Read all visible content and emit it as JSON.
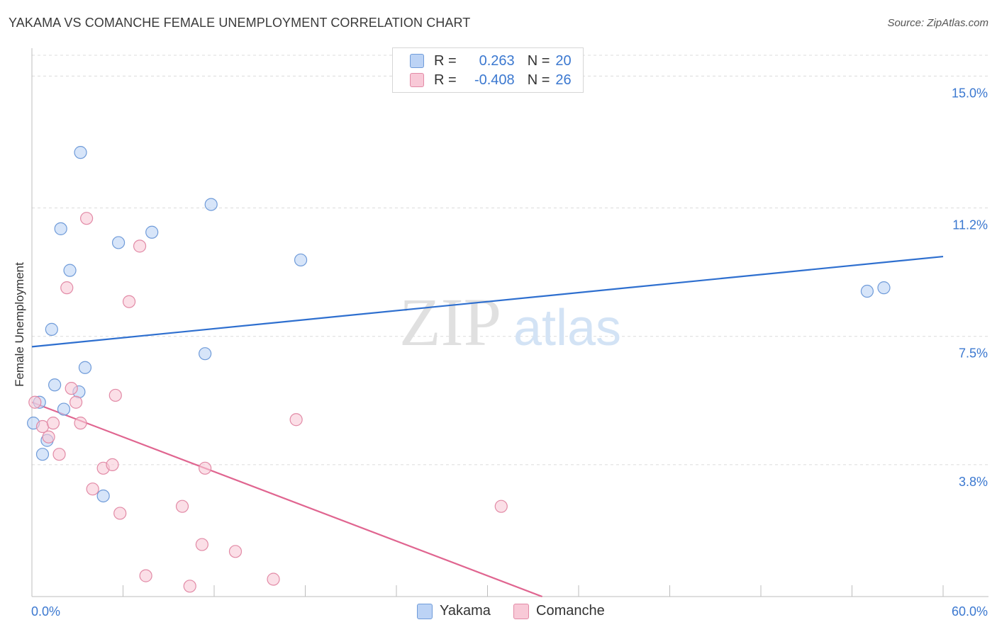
{
  "title": "YAKAMA VS COMANCHE FEMALE UNEMPLOYMENT CORRELATION CHART",
  "source": "Source: ZipAtlas.com",
  "watermark": {
    "zip": "ZIP",
    "atlas": "atlas"
  },
  "legend": {
    "rows": [
      {
        "r_label": "R =",
        "r_value": "0.263",
        "n_label": "N =",
        "n_value": "20"
      },
      {
        "r_label": "R =",
        "r_value": "-0.408",
        "n_label": "N =",
        "n_value": "26"
      }
    ]
  },
  "bottom_legend": {
    "series1": "Yakama",
    "series2": "Comanche"
  },
  "colors": {
    "yakama_fill": "#bcd3f5",
    "yakama_stroke": "#6f9bd9",
    "yakama_line": "#2e6fcf",
    "comanche_fill": "#f8c9d7",
    "comanche_stroke": "#e28aa6",
    "comanche_line": "#e06590",
    "tick_label": "#3b78d0",
    "grid": "#dcdcdc"
  },
  "chart_data": {
    "type": "scatter",
    "title": "YAKAMA VS COMANCHE FEMALE UNEMPLOYMENT CORRELATION CHART",
    "xlabel": "",
    "ylabel": "Female Unemployment",
    "xlim": [
      0,
      60
    ],
    "ylim": [
      0,
      15.6
    ],
    "x_tick_labels": [
      {
        "value": 0,
        "label": "0.0%"
      },
      {
        "value": 60,
        "label": "60.0%"
      }
    ],
    "y_ticks": [
      {
        "value": 15.0,
        "label": "15.0%"
      },
      {
        "value": 11.2,
        "label": "11.2%"
      },
      {
        "value": 7.5,
        "label": "7.5%"
      },
      {
        "value": 3.8,
        "label": "3.8%"
      }
    ],
    "series": [
      {
        "name": "Yakama",
        "points": [
          [
            0.1,
            5.0
          ],
          [
            0.5,
            5.6
          ],
          [
            0.7,
            4.1
          ],
          [
            1.0,
            4.5
          ],
          [
            1.3,
            7.7
          ],
          [
            1.5,
            6.1
          ],
          [
            1.9,
            10.6
          ],
          [
            2.1,
            5.4
          ],
          [
            2.5,
            9.4
          ],
          [
            3.1,
            5.9
          ],
          [
            3.2,
            12.8
          ],
          [
            3.5,
            6.6
          ],
          [
            4.7,
            2.9
          ],
          [
            5.7,
            10.2
          ],
          [
            7.9,
            10.5
          ],
          [
            11.4,
            7.0
          ],
          [
            11.8,
            11.3
          ],
          [
            17.7,
            9.7
          ],
          [
            55.0,
            8.8
          ],
          [
            56.1,
            8.9
          ]
        ],
        "trend": {
          "x": [
            0,
            60
          ],
          "y": [
            7.2,
            9.8
          ],
          "r": 0.263,
          "n": 20
        }
      },
      {
        "name": "Comanche",
        "points": [
          [
            0.2,
            5.6
          ],
          [
            0.7,
            4.9
          ],
          [
            1.1,
            4.6
          ],
          [
            1.4,
            5.0
          ],
          [
            1.8,
            4.1
          ],
          [
            2.3,
            8.9
          ],
          [
            2.6,
            6.0
          ],
          [
            2.9,
            5.6
          ],
          [
            3.2,
            5.0
          ],
          [
            3.6,
            10.9
          ],
          [
            4.0,
            3.1
          ],
          [
            4.7,
            3.7
          ],
          [
            5.3,
            3.8
          ],
          [
            5.5,
            5.8
          ],
          [
            5.8,
            2.4
          ],
          [
            6.4,
            8.5
          ],
          [
            7.1,
            10.1
          ],
          [
            7.5,
            0.6
          ],
          [
            9.9,
            2.6
          ],
          [
            10.4,
            0.3
          ],
          [
            11.2,
            1.5
          ],
          [
            11.4,
            3.7
          ],
          [
            13.4,
            1.3
          ],
          [
            15.9,
            0.5
          ],
          [
            17.4,
            5.1
          ],
          [
            30.9,
            2.6
          ]
        ],
        "trend": {
          "x": [
            0,
            33.6
          ],
          "y": [
            5.6,
            0.0
          ],
          "r": -0.408,
          "n": 26
        }
      }
    ]
  }
}
